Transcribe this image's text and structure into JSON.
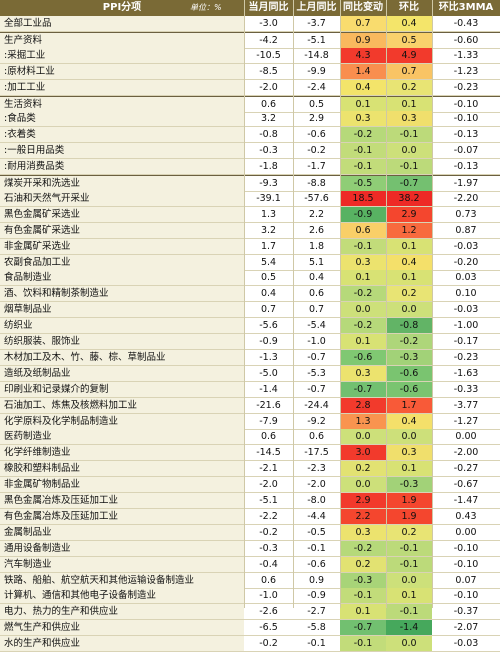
{
  "chart_data": {
    "type": "table",
    "header": {
      "name_col": "PPI分项",
      "unit": "单位：%",
      "cols": [
        "当月同比",
        "上月同比",
        "同比变动",
        "环比",
        "环比3MMA"
      ]
    },
    "rows": [
      {
        "name": "全部工业品",
        "cur": "-3.0",
        "prev": "-3.7",
        "yoy_chg": "0.7",
        "mom": "0.4",
        "mma": "-0.43",
        "yoy_color": "#f9dc6e",
        "mom_color": "#f4e56a"
      },
      {
        "name": "生产资料",
        "cur": "-4.2",
        "prev": "-5.1",
        "yoy_chg": "0.9",
        "mom": "0.5",
        "mma": "-0.60",
        "yoy_color": "#f9b95e",
        "mom_color": "#f9d16c",
        "sep": true
      },
      {
        "name": ":采掘工业",
        "cur": "-10.5",
        "prev": "-14.8",
        "yoy_chg": "4.3",
        "mom": "4.9",
        "mma": "-1.33",
        "yoy_color": "#f23a2c",
        "mom_color": "#f23a2c"
      },
      {
        "name": ":原材料工业",
        "cur": "-8.5",
        "prev": "-9.9",
        "yoy_chg": "1.4",
        "mom": "0.7",
        "mma": "-1.23",
        "yoy_color": "#f98e4e",
        "mom_color": "#f9c464"
      },
      {
        "name": ":加工工业",
        "cur": "-2.0",
        "prev": "-2.4",
        "yoy_chg": "0.4",
        "mom": "0.2",
        "mma": "-0.23",
        "yoy_color": "#f3e46a",
        "mom_color": "#e8e474"
      },
      {
        "name": "生活资料",
        "cur": "0.6",
        "prev": "0.5",
        "yoy_chg": "0.1",
        "mom": "0.1",
        "mma": "-0.10",
        "yoy_color": "#d8e274",
        "mom_color": "#d8e274",
        "sep": true
      },
      {
        "name": ":食品类",
        "cur": "3.2",
        "prev": "2.9",
        "yoy_chg": "0.3",
        "mom": "0.3",
        "mma": "-0.10",
        "yoy_color": "#ece36e",
        "mom_color": "#f0df6c"
      },
      {
        "name": ":衣着类",
        "cur": "-0.8",
        "prev": "-0.6",
        "yoy_chg": "-0.2",
        "mom": "-0.1",
        "mma": "-0.13",
        "yoy_color": "#b6d97a",
        "mom_color": "#bcda7a"
      },
      {
        "name": ":一般日用品类",
        "cur": "-0.3",
        "prev": "-0.2",
        "yoy_chg": "-0.1",
        "mom": "0.0",
        "mma": "-0.07",
        "yoy_color": "#c2dc7a",
        "mom_color": "#cde07a"
      },
      {
        "name": ":耐用消费品类",
        "cur": "-1.8",
        "prev": "-1.7",
        "yoy_chg": "-0.1",
        "mom": "-0.1",
        "mma": "-0.13",
        "yoy_color": "#c2dc7a",
        "mom_color": "#bcda7a"
      },
      {
        "name": "煤炭开采和洗选业",
        "cur": "-9.3",
        "prev": "-8.8",
        "yoy_chg": "-0.5",
        "mom": "-0.7",
        "mma": "-1.97",
        "yoy_color": "#8fcd76",
        "mom_color": "#74c070",
        "sep": true
      },
      {
        "name": "石油和天然气开采业",
        "cur": "-39.1",
        "prev": "-57.6",
        "yoy_chg": "18.5",
        "mom": "38.2",
        "mma": "-2.20",
        "yoy_color": "#ee2a26",
        "mom_color": "#ee2a26"
      },
      {
        "name": "黑色金属矿采选业",
        "cur": "1.3",
        "prev": "2.2",
        "yoy_chg": "-0.9",
        "mom": "2.9",
        "mma": "0.73",
        "yoy_color": "#58b262",
        "mom_color": "#f4462e"
      },
      {
        "name": "有色金属矿采选业",
        "cur": "3.2",
        "prev": "2.6",
        "yoy_chg": "0.6",
        "mom": "1.2",
        "mma": "0.87",
        "yoy_color": "#f9cf68",
        "mom_color": "#f86a3e"
      },
      {
        "name": "非金属矿采选业",
        "cur": "1.7",
        "prev": "1.8",
        "yoy_chg": "-0.1",
        "mom": "0.1",
        "mma": "-0.03",
        "yoy_color": "#c2dc7a",
        "mom_color": "#d8e274"
      },
      {
        "name": "农副食品加工业",
        "cur": "5.4",
        "prev": "5.1",
        "yoy_chg": "0.3",
        "mom": "0.4",
        "mma": "-0.20",
        "yoy_color": "#ece36e",
        "mom_color": "#f4e06a"
      },
      {
        "name": "食品制造业",
        "cur": "0.5",
        "prev": "0.4",
        "yoy_chg": "0.1",
        "mom": "0.1",
        "mma": "0.03",
        "yoy_color": "#d8e274",
        "mom_color": "#d8e274"
      },
      {
        "name": "酒、饮料和精制茶制造业",
        "cur": "0.4",
        "prev": "0.6",
        "yoy_chg": "-0.2",
        "mom": "0.2",
        "mma": "0.10",
        "yoy_color": "#b6d97a",
        "mom_color": "#e8e474"
      },
      {
        "name": "烟草制品业",
        "cur": "0.7",
        "prev": "0.7",
        "yoy_chg": "0.0",
        "mom": "0.0",
        "mma": "-0.03",
        "yoy_color": "#cde07a",
        "mom_color": "#cde07a"
      },
      {
        "name": "纺织业",
        "cur": "-5.6",
        "prev": "-5.4",
        "yoy_chg": "-0.2",
        "mom": "-0.8",
        "mma": "-1.00",
        "yoy_color": "#b6d97a",
        "mom_color": "#62b466"
      },
      {
        "name": "纺织服装、服饰业",
        "cur": "-0.9",
        "prev": "-1.0",
        "yoy_chg": "0.1",
        "mom": "-0.2",
        "mma": "-0.17",
        "yoy_color": "#d8e274",
        "mom_color": "#aed67a"
      },
      {
        "name": "木材加工及木、竹、藤、棕、草制品业",
        "cur": "-1.3",
        "prev": "-0.7",
        "yoy_chg": "-0.6",
        "mom": "-0.3",
        "mma": "-0.23",
        "yoy_color": "#80c872",
        "mom_color": "#a2d278"
      },
      {
        "name": "造纸及纸制品业",
        "cur": "-5.0",
        "prev": "-5.3",
        "yoy_chg": "0.3",
        "mom": "-0.6",
        "mma": "-1.63",
        "yoy_color": "#ece36e",
        "mom_color": "#7ac470"
      },
      {
        "name": "印刷业和记录媒介的复制",
        "cur": "-1.4",
        "prev": "-0.7",
        "yoy_chg": "-0.7",
        "mom": "-0.6",
        "mma": "-0.33",
        "yoy_color": "#72c070",
        "mom_color": "#7ac470"
      },
      {
        "name": "石油加工、炼焦及核燃料加工业",
        "cur": "-21.6",
        "prev": "-24.4",
        "yoy_chg": "2.8",
        "mom": "1.7",
        "mma": "-3.77",
        "yoy_color": "#f23a2c",
        "mom_color": "#f85a38"
      },
      {
        "name": "化学原料及化学制品制造业",
        "cur": "-7.9",
        "prev": "-9.2",
        "yoy_chg": "1.3",
        "mom": "0.4",
        "mma": "-1.27",
        "yoy_color": "#f9944f",
        "mom_color": "#f4e06a"
      },
      {
        "name": "医药制造业",
        "cur": "0.6",
        "prev": "0.6",
        "yoy_chg": "0.0",
        "mom": "0.0",
        "mma": "0.00",
        "yoy_color": "#cde07a",
        "mom_color": "#cde07a"
      },
      {
        "name": "化学纤维制造业",
        "cur": "-14.5",
        "prev": "-17.5",
        "yoy_chg": "3.0",
        "mom": "0.3",
        "mma": "-2.00",
        "yoy_color": "#f23a2c",
        "mom_color": "#f0df6c"
      },
      {
        "name": "橡胶和塑料制品业",
        "cur": "-2.1",
        "prev": "-2.3",
        "yoy_chg": "0.2",
        "mom": "0.1",
        "mma": "-0.27",
        "yoy_color": "#e2e272",
        "mom_color": "#d8e274"
      },
      {
        "name": "非金属矿物制品业",
        "cur": "-2.0",
        "prev": "-2.0",
        "yoy_chg": "0.0",
        "mom": "-0.3",
        "mma": "-0.67",
        "yoy_color": "#cde07a",
        "mom_color": "#a2d278"
      },
      {
        "name": "黑色金属冶炼及压延加工业",
        "cur": "-5.1",
        "prev": "-8.0",
        "yoy_chg": "2.9",
        "mom": "1.9",
        "mma": "-1.47",
        "yoy_color": "#f23a2c",
        "mom_color": "#f4462e"
      },
      {
        "name": "有色金属冶炼及压延加工业",
        "cur": "-2.2",
        "prev": "-4.4",
        "yoy_chg": "2.2",
        "mom": "1.9",
        "mma": "0.43",
        "yoy_color": "#f4462e",
        "mom_color": "#f4462e"
      },
      {
        "name": "金属制品业",
        "cur": "-0.2",
        "prev": "-0.5",
        "yoy_chg": "0.3",
        "mom": "0.2",
        "mma": "0.00",
        "yoy_color": "#ece36e",
        "mom_color": "#e8e474"
      },
      {
        "name": "通用设备制造业",
        "cur": "-0.3",
        "prev": "-0.1",
        "yoy_chg": "-0.2",
        "mom": "-0.1",
        "mma": "-0.10",
        "yoy_color": "#b6d97a",
        "mom_color": "#bcda7a"
      },
      {
        "name": "汽车制造业",
        "cur": "-0.4",
        "prev": "-0.6",
        "yoy_chg": "0.2",
        "mom": "-0.1",
        "mma": "-0.10",
        "yoy_color": "#e2e272",
        "mom_color": "#bcda7a"
      },
      {
        "name": "铁路、船舶、航空航天和其他运输设备制造业",
        "cur": "0.6",
        "prev": "0.9",
        "yoy_chg": "-0.3",
        "mom": "0.0",
        "mma": "0.07",
        "yoy_color": "#a8d478",
        "mom_color": "#cde07a"
      },
      {
        "name": "计算机、通信和其他电子设备制造业",
        "cur": "-1.0",
        "prev": "-0.9",
        "yoy_chg": "-0.1",
        "mom": "0.1",
        "mma": "-0.10",
        "yoy_color": "#c2dc7a",
        "mom_color": "#d8e274"
      },
      {
        "name": "电力、热力的生产和供应业",
        "cur": "-2.6",
        "prev": "-2.7",
        "yoy_chg": "0.1",
        "mom": "-0.1",
        "mma": "-0.37",
        "yoy_color": "#d8e274",
        "mom_color": "#bcda7a"
      },
      {
        "name": "燃气生产和供应业",
        "cur": "-6.5",
        "prev": "-5.8",
        "yoy_chg": "-0.7",
        "mom": "-1.4",
        "mma": "-2.07",
        "yoy_color": "#72c070",
        "mom_color": "#46a85c"
      },
      {
        "name": "水的生产和供应业",
        "cur": "-0.2",
        "prev": "-0.1",
        "yoy_chg": "-0.1",
        "mom": "0.0",
        "mma": "-0.03",
        "yoy_color": "#c2dc7a",
        "mom_color": "#cde07a"
      }
    ]
  }
}
